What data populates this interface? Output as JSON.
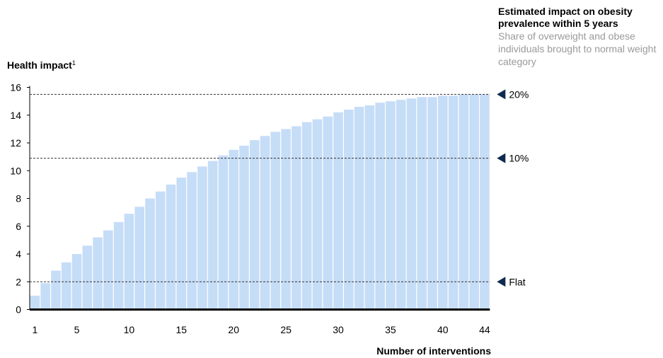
{
  "chart_data": {
    "type": "bar",
    "title": "Estimated impact on obesity prevalence within 5 years",
    "subtitle": "Share of overweight and obese individuals brought to normal weight category",
    "ylabel": "Health impact",
    "ylabel_footnote": "1",
    "xlabel": "Number of interventions",
    "ylim": [
      0,
      16
    ],
    "yticks": [
      "0",
      "2",
      "4",
      "6",
      "8",
      "10",
      "12",
      "14",
      "16"
    ],
    "xtick_labels": [
      {
        "x": 1,
        "label": "1"
      },
      {
        "x": 5,
        "label": "5"
      },
      {
        "x": 10,
        "label": "10"
      },
      {
        "x": 15,
        "label": "15"
      },
      {
        "x": 20,
        "label": "20"
      },
      {
        "x": 25,
        "label": "25"
      },
      {
        "x": 30,
        "label": "30"
      },
      {
        "x": 35,
        "label": "35"
      },
      {
        "x": 40,
        "label": "40"
      },
      {
        "x": 44,
        "label": "44"
      }
    ],
    "x": [
      1,
      2,
      3,
      4,
      5,
      6,
      7,
      8,
      9,
      10,
      11,
      12,
      13,
      14,
      15,
      16,
      17,
      18,
      19,
      20,
      21,
      22,
      23,
      24,
      25,
      26,
      27,
      28,
      29,
      30,
      31,
      32,
      33,
      34,
      35,
      36,
      37,
      38,
      39,
      40,
      41,
      42,
      43,
      44
    ],
    "values": [
      1.0,
      1.9,
      2.8,
      3.4,
      4.0,
      4.6,
      5.2,
      5.7,
      6.3,
      6.9,
      7.4,
      8.0,
      8.5,
      9.0,
      9.5,
      9.9,
      10.3,
      10.7,
      11.1,
      11.5,
      11.8,
      12.2,
      12.5,
      12.8,
      13.0,
      13.2,
      13.5,
      13.7,
      13.9,
      14.2,
      14.4,
      14.6,
      14.7,
      14.9,
      15.0,
      15.1,
      15.2,
      15.3,
      15.3,
      15.4,
      15.4,
      15.5,
      15.5,
      15.5
    ],
    "reference_lines": [
      {
        "value": 15.5,
        "label": "20%"
      },
      {
        "value": 10.9,
        "label": "10%"
      },
      {
        "value": 2.0,
        "label": "Flat"
      }
    ],
    "colors": {
      "bar": "#c6ddf7",
      "marker": "#0e2a4f",
      "axis": "#000000",
      "grid_line": "#333333"
    },
    "grid": false
  }
}
